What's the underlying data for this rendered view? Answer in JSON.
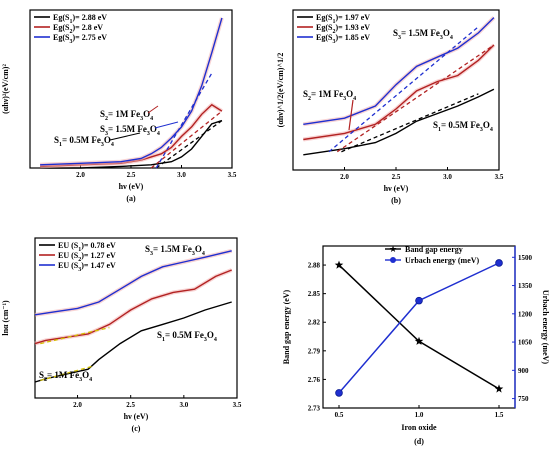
{
  "chart_data": [
    {
      "type": "line",
      "panel_label": "(a)",
      "xlabel": "hν (eV)",
      "ylabel": "(αhν)²(eV/cm)²",
      "xlim": [
        1.5,
        3.5
      ],
      "xticks": [
        "2.0",
        "2.5",
        "3.0",
        "3.5"
      ],
      "legend": [
        "Eg(S1)= 2.88 eV",
        "Eg(S2)= 2.8 eV",
        "Eg(S3)= 2.75 eV"
      ],
      "legend_position": "top-left",
      "annotations": [
        "S3= 1.5M Fe3O4",
        "S2= 1M Fe3O4",
        "S1= 0.5M Fe3O4"
      ],
      "series": [
        {
          "name": "S1",
          "color": "#000000",
          "x": [
            1.6,
            2.0,
            2.4,
            2.7,
            2.9,
            3.0,
            3.1,
            3.2,
            3.3,
            3.4
          ],
          "y": [
            0.0,
            0.0,
            0.01,
            0.02,
            0.04,
            0.07,
            0.12,
            0.2,
            0.28,
            0.3
          ]
        },
        {
          "name": "S2",
          "color": "#b22222",
          "x": [
            1.6,
            2.0,
            2.4,
            2.6,
            2.8,
            2.9,
            3.0,
            3.1,
            3.2,
            3.3,
            3.4
          ],
          "y": [
            0.01,
            0.02,
            0.03,
            0.05,
            0.09,
            0.13,
            0.2,
            0.26,
            0.34,
            0.4,
            0.36
          ]
        },
        {
          "name": "S3",
          "color": "#1f2fd0",
          "x": [
            1.6,
            2.0,
            2.4,
            2.6,
            2.7,
            2.8,
            2.9,
            3.0,
            3.1,
            3.2,
            3.3,
            3.4
          ],
          "y": [
            0.02,
            0.03,
            0.04,
            0.06,
            0.09,
            0.13,
            0.19,
            0.26,
            0.36,
            0.52,
            0.73,
            0.95
          ]
        }
      ],
      "fits": [
        {
          "name": "S1",
          "color": "#000000",
          "x": [
            2.75,
            3.4
          ],
          "y": [
            0.0,
            0.3
          ]
        },
        {
          "name": "S2",
          "color": "#b22222",
          "x": [
            2.7,
            3.4
          ],
          "y": [
            0.0,
            0.36
          ]
        },
        {
          "name": "S3",
          "color": "#1f2fd0",
          "x": [
            2.75,
            3.3
          ],
          "y": [
            0.0,
            0.6
          ]
        }
      ],
      "ylim": [
        0,
        1.0
      ]
    },
    {
      "type": "line",
      "panel_label": "(b)",
      "xlabel": "hν (eV)",
      "ylabel": "(αhν)^1/2(eV/cm)^1/2",
      "xlim": [
        1.5,
        3.5
      ],
      "xticks": [
        "2.0",
        "2.5",
        "3.0",
        "3.5"
      ],
      "legend": [
        "Eg(S1)= 1.97 eV",
        "Eg(S2)= 1.93 eV",
        "Eg(S3)= 1.85 eV"
      ],
      "legend_position": "top-left",
      "annotations": [
        "S3= 1.5M Fe3O4",
        "S2= 1M Fe3O4",
        "S1= 0.5M Fe3O4"
      ],
      "series": [
        {
          "name": "S1",
          "color": "#000000",
          "x": [
            1.6,
            2.0,
            2.3,
            2.5,
            2.7,
            2.9,
            3.1,
            3.3,
            3.45
          ],
          "y": [
            0.1,
            0.14,
            0.18,
            0.24,
            0.32,
            0.37,
            0.42,
            0.48,
            0.53
          ]
        },
        {
          "name": "S2",
          "color": "#b22222",
          "x": [
            1.6,
            2.0,
            2.3,
            2.5,
            2.7,
            2.9,
            3.1,
            3.3,
            3.45
          ],
          "y": [
            0.2,
            0.24,
            0.3,
            0.4,
            0.52,
            0.58,
            0.62,
            0.72,
            0.82
          ]
        },
        {
          "name": "S3",
          "color": "#1f2fd0",
          "x": [
            1.6,
            2.0,
            2.3,
            2.5,
            2.7,
            2.9,
            3.1,
            3.3,
            3.45
          ],
          "y": [
            0.3,
            0.34,
            0.42,
            0.56,
            0.68,
            0.74,
            0.8,
            0.9,
            1.0
          ]
        }
      ],
      "fits": [
        {
          "name": "S1",
          "color": "#000000",
          "x": [
            1.97,
            3.3
          ],
          "y": [
            0.12,
            0.5
          ]
        },
        {
          "name": "S2",
          "color": "#b22222",
          "x": [
            1.93,
            3.45
          ],
          "y": [
            0.12,
            0.82
          ]
        },
        {
          "name": "S3",
          "color": "#1f2fd0",
          "x": [
            1.85,
            3.3
          ],
          "y": [
            0.12,
            0.94
          ]
        }
      ],
      "ylim": [
        0,
        1.05
      ]
    },
    {
      "type": "line",
      "panel_label": "(c)",
      "xlabel": "hν (eV)",
      "ylabel": "lnα (cm⁻¹)",
      "xlim": [
        1.6,
        3.5
      ],
      "xticks": [
        "2.0",
        "2.5",
        "3.0",
        "3.5"
      ],
      "legend": [
        "EU (S1)= 0.78 eV",
        "EU (S2)= 1.27 eV",
        "EU (S3)= 1.47 eV"
      ],
      "legend_position": "top-left",
      "annotations": [
        "S3= 1.5M Fe3O4",
        "S1= 0.5M Fe3O4",
        "S2= 1M Fe3O4"
      ],
      "series": [
        {
          "name": "S1",
          "color": "#000000",
          "x": [
            1.6,
            1.7,
            1.9,
            2.1,
            2.2,
            2.4,
            2.6,
            2.8,
            3.0,
            3.2,
            3.45
          ],
          "y": [
            0.1,
            0.12,
            0.15,
            0.18,
            0.24,
            0.34,
            0.42,
            0.46,
            0.5,
            0.55,
            0.6
          ]
        },
        {
          "name": "S2",
          "color": "#b22222",
          "x": [
            1.6,
            1.7,
            1.9,
            2.1,
            2.3,
            2.5,
            2.7,
            2.9,
            3.1,
            3.3,
            3.45
          ],
          "y": [
            0.34,
            0.36,
            0.38,
            0.4,
            0.46,
            0.55,
            0.62,
            0.66,
            0.68,
            0.76,
            0.8
          ]
        },
        {
          "name": "S3",
          "color": "#1f2fd0",
          "x": [
            1.6,
            1.8,
            2.0,
            2.2,
            2.4,
            2.6,
            2.8,
            3.0,
            3.2,
            3.45
          ],
          "y": [
            0.52,
            0.54,
            0.56,
            0.6,
            0.68,
            0.76,
            0.82,
            0.85,
            0.88,
            0.92
          ]
        }
      ],
      "fits": [
        {
          "name": "S1",
          "color": "#d4c000",
          "x": [
            1.65,
            2.15
          ],
          "y": [
            0.11,
            0.2
          ]
        },
        {
          "name": "S2",
          "color": "#d4c000",
          "x": [
            1.65,
            2.3
          ],
          "y": [
            0.34,
            0.44
          ]
        }
      ],
      "ylim": [
        0,
        1.0
      ]
    },
    {
      "type": "line",
      "panel_label": "(d)",
      "xlabel": "Iron oxide",
      "ylabel": "Band gap energy (eV)",
      "y2label": "Urbach energy (meV)",
      "xlim": [
        0.4,
        1.6
      ],
      "xticks": [
        "0.5",
        "1.0",
        "1.5"
      ],
      "ylim": [
        2.73,
        2.9
      ],
      "yticks": [
        "2.73",
        "2.76",
        "2.79",
        "2.82",
        "2.85",
        "2.88"
      ],
      "y2lim": [
        700,
        1560
      ],
      "y2ticks": [
        "750",
        "900",
        "1050",
        "1200",
        "1350",
        "1500"
      ],
      "legend": [
        "Band gap energy",
        "Urbach energy (meV)"
      ],
      "legend_position": "top-right",
      "series": [
        {
          "name": "Band gap energy",
          "color": "#000000",
          "axis": "left",
          "marker": "star",
          "x": [
            0.5,
            1.0,
            1.5
          ],
          "y": [
            2.88,
            2.8,
            2.75
          ]
        },
        {
          "name": "Urbach energy (meV)",
          "color": "#1f2fd0",
          "axis": "right",
          "marker": "circle",
          "x": [
            0.5,
            1.0,
            1.5
          ],
          "y": [
            780,
            1270,
            1470
          ]
        }
      ]
    }
  ]
}
